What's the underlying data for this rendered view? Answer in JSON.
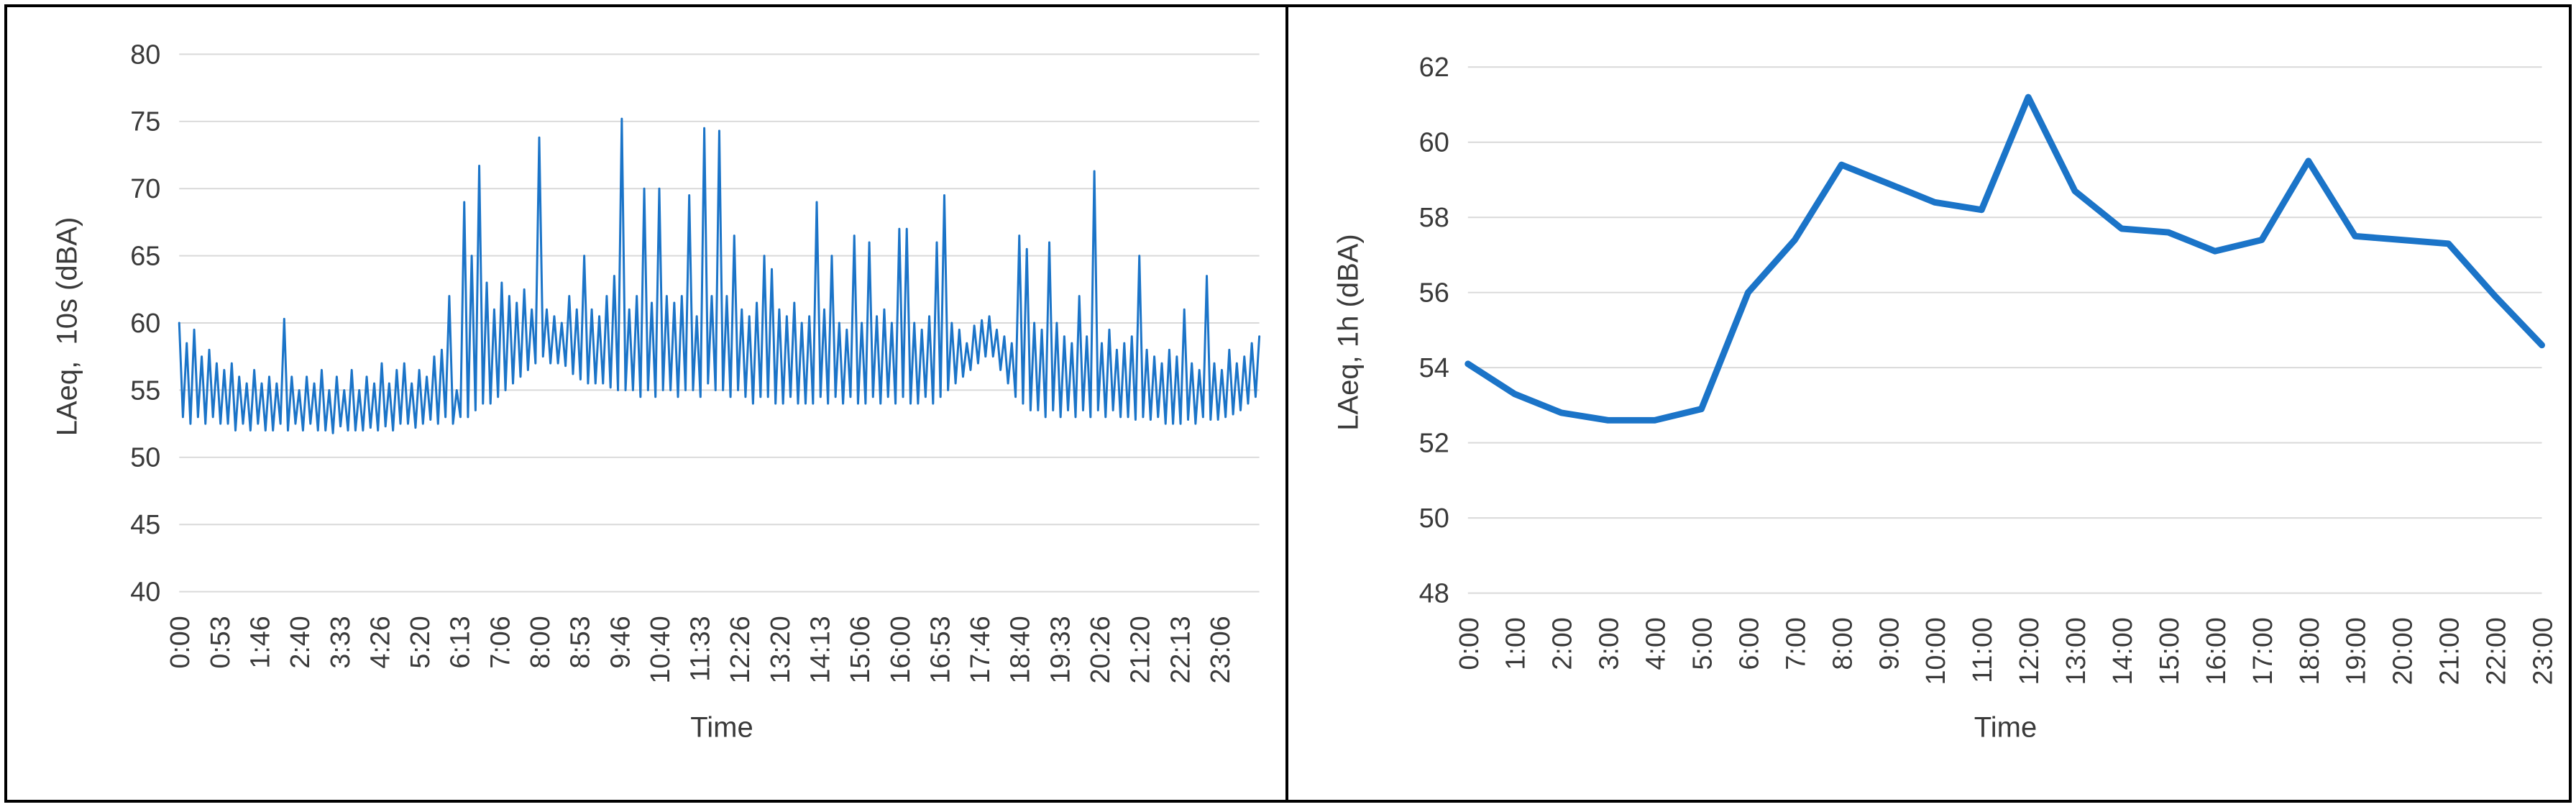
{
  "figure": {
    "background": "#ffffff",
    "frame_border_color": "#000000",
    "line_color": "#1b74c8",
    "gridline_color": "#d9d9d9",
    "text_color": "#3a3a3a"
  },
  "chart_data": [
    {
      "type": "line",
      "title": "",
      "xlabel": "Time",
      "ylabel": "LAeq,  10s (dBA)",
      "ylim": [
        40,
        80
      ],
      "yticks": [
        40,
        45,
        50,
        55,
        60,
        65,
        70,
        75,
        80
      ],
      "grid": true,
      "legend": false,
      "x_tick_labels": [
        "0:00",
        "0:53",
        "1:46",
        "2:40",
        "3:33",
        "4:26",
        "5:20",
        "6:13",
        "7:06",
        "8:00",
        "8:53",
        "9:46",
        "10:40",
        "11:33",
        "12:26",
        "13:20",
        "14:13",
        "15:06",
        "16:00",
        "16:53",
        "17:46",
        "18:40",
        "19:33",
        "20:26",
        "21:20",
        "22:13",
        "23:06"
      ],
      "x_start_minutes": 0,
      "x_end_minutes": 1440,
      "x_step_minutes": 5,
      "sampling_note": "10-second LAeq over 24 h; noisy band ~52-62 dBA with traffic spikes; values estimated at 5-min resolution from pixels",
      "values": [
        60.0,
        53.0,
        58.5,
        52.5,
        59.5,
        53.0,
        57.5,
        52.5,
        58.0,
        53.0,
        57.0,
        52.5,
        56.5,
        52.5,
        57.0,
        52.0,
        56.0,
        52.5,
        55.5,
        52.0,
        56.5,
        52.5,
        55.5,
        52.0,
        56.0,
        52.0,
        55.5,
        52.5,
        60.3,
        52.0,
        56.0,
        52.5,
        55.0,
        52.0,
        56.0,
        52.5,
        55.5,
        52.0,
        56.5,
        52.0,
        55.0,
        51.8,
        56.0,
        52.3,
        55.0,
        52.0,
        56.5,
        52.0,
        55.0,
        52.0,
        56.0,
        52.2,
        55.5,
        52.0,
        57.0,
        52.3,
        55.5,
        52.0,
        56.5,
        52.5,
        57.0,
        52.5,
        55.5,
        52.2,
        56.5,
        52.5,
        56.0,
        52.8,
        57.5,
        52.5,
        58.0,
        53.0,
        62.0,
        52.5,
        55.0,
        53.0,
        69.0,
        53.0,
        65.0,
        53.5,
        71.7,
        54.0,
        63.0,
        54.0,
        61.0,
        54.5,
        63.0,
        55.0,
        62.0,
        55.5,
        61.5,
        56.0,
        62.5,
        56.5,
        61.0,
        57.0,
        73.8,
        57.5,
        61.0,
        57.0,
        60.5,
        57.0,
        60.0,
        56.8,
        62.0,
        56.2,
        61.0,
        55.8,
        65.0,
        55.5,
        61.0,
        55.5,
        60.5,
        55.5,
        62.0,
        55.2,
        63.5,
        55.0,
        75.2,
        55.0,
        61.0,
        55.0,
        62.0,
        54.5,
        70.0,
        55.0,
        61.5,
        54.5,
        70.0,
        55.0,
        62.0,
        55.0,
        61.5,
        54.5,
        62.0,
        55.0,
        69.5,
        55.0,
        60.5,
        54.5,
        74.5,
        55.5,
        62.0,
        55.0,
        74.3,
        55.0,
        62.0,
        54.5,
        66.5,
        55.0,
        61.0,
        54.5,
        60.5,
        54.0,
        61.5,
        54.5,
        65.0,
        54.5,
        64.0,
        54.0,
        61.0,
        54.0,
        60.5,
        54.5,
        61.5,
        54.0,
        60.0,
        54.0,
        60.5,
        54.0,
        69.0,
        54.5,
        61.0,
        54.0,
        65.0,
        54.5,
        60.0,
        54.0,
        59.5,
        54.5,
        66.5,
        54.0,
        60.0,
        54.0,
        66.0,
        54.5,
        60.5,
        54.0,
        61.0,
        54.5,
        60.0,
        54.0,
        67.0,
        54.5,
        67.0,
        54.0,
        60.0,
        54.0,
        59.5,
        54.5,
        60.5,
        54.0,
        66.0,
        54.5,
        69.5,
        55.0,
        60.0,
        55.5,
        59.5,
        56.0,
        58.5,
        56.5,
        59.8,
        57.0,
        60.2,
        57.5,
        60.5,
        57.5,
        59.5,
        56.5,
        59.0,
        55.5,
        58.5,
        54.5,
        66.5,
        54.0,
        65.5,
        53.5,
        60.0,
        53.5,
        59.5,
        53.0,
        66.0,
        53.5,
        60.0,
        53.0,
        59.0,
        53.5,
        58.5,
        53.0,
        62.0,
        53.5,
        59.0,
        53.0,
        71.3,
        53.5,
        58.5,
        53.0,
        59.5,
        53.5,
        58.0,
        53.0,
        58.5,
        53.0,
        59.0,
        52.8,
        65.0,
        53.0,
        58.0,
        52.8,
        57.5,
        53.0,
        57.0,
        52.5,
        58.0,
        52.5,
        57.5,
        52.5,
        61.0,
        52.8,
        57.0,
        52.5,
        56.5,
        53.0,
        63.5,
        52.8,
        57.0,
        52.8,
        56.5,
        53.0,
        58.0,
        53.2,
        57.0,
        53.5,
        57.5,
        54.0,
        58.5,
        54.5,
        59.0
      ]
    },
    {
      "type": "line",
      "title": "",
      "xlabel": "Time",
      "ylabel": "LAeq, 1h (dBA)",
      "ylim": [
        48,
        62
      ],
      "yticks": [
        48,
        50,
        52,
        54,
        56,
        58,
        60,
        62
      ],
      "grid": true,
      "legend": false,
      "categories": [
        "0:00",
        "1:00",
        "2:00",
        "3:00",
        "4:00",
        "5:00",
        "6:00",
        "7:00",
        "8:00",
        "9:00",
        "10:00",
        "11:00",
        "12:00",
        "13:00",
        "14:00",
        "15:00",
        "16:00",
        "17:00",
        "18:00",
        "19:00",
        "20:00",
        "21:00",
        "22:00",
        "23:00"
      ],
      "values": [
        54.1,
        53.3,
        52.8,
        52.6,
        52.6,
        52.9,
        56.0,
        57.4,
        59.4,
        58.9,
        58.4,
        58.2,
        61.2,
        58.7,
        57.7,
        57.6,
        57.1,
        57.4,
        59.5,
        57.5,
        57.4,
        57.3,
        55.9,
        54.6
      ]
    }
  ]
}
